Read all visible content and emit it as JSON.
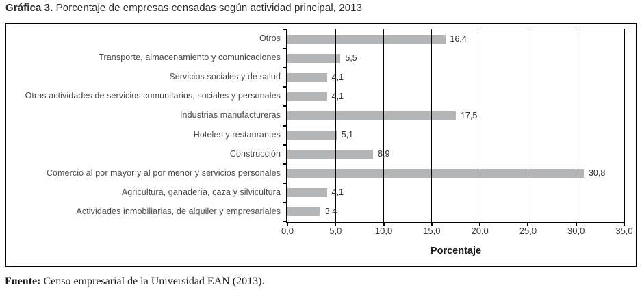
{
  "title": {
    "prefix": "Gráfica 3.",
    "text": " Porcentaje de empresas censadas según actividad principal, 2013"
  },
  "source": {
    "prefix": "Fuente:",
    "text": " Censo empresarial de la Universidad EAN (2013)."
  },
  "chart_data": {
    "type": "bar",
    "orientation": "horizontal",
    "title": "Gráfica 3. Porcentaje de empresas censadas según actividad principal, 2013",
    "categories": [
      "Otros",
      "Transporte, almacenamiento y comunicaciones",
      "Servicios sociales y de salud",
      "Otras actividades de servicios comunitarios, sociales y personales",
      "Industrias manufactureras",
      "Hoteles y restaurantes",
      "Construcción",
      "Comercio al por mayor y al por menor y servicios personales",
      "Agricultura, ganadería, caza y silvicultura",
      "Actividades inmobiliarias, de alquiler y empresariales"
    ],
    "values": [
      16.4,
      5.5,
      4.1,
      4.1,
      17.5,
      5.1,
      8.9,
      30.8,
      4.1,
      3.4
    ],
    "value_labels": [
      "16,4",
      "5,5",
      "4,1",
      "4,1",
      "17,5",
      "5,1",
      "8,9",
      "30,8",
      "4,1",
      "3,4"
    ],
    "xlabel": "Porcentaje",
    "ylabel": "",
    "xlim": [
      0,
      35
    ],
    "x_ticks": [
      0,
      5,
      10,
      15,
      20,
      25,
      30,
      35
    ],
    "x_tick_labels": [
      "0,0",
      "5,0",
      "10,0",
      "15,0",
      "20,0",
      "25,0",
      "30,0",
      "35,0"
    ],
    "grid": true,
    "legend": false,
    "bar_color": "#b3b5b7"
  }
}
